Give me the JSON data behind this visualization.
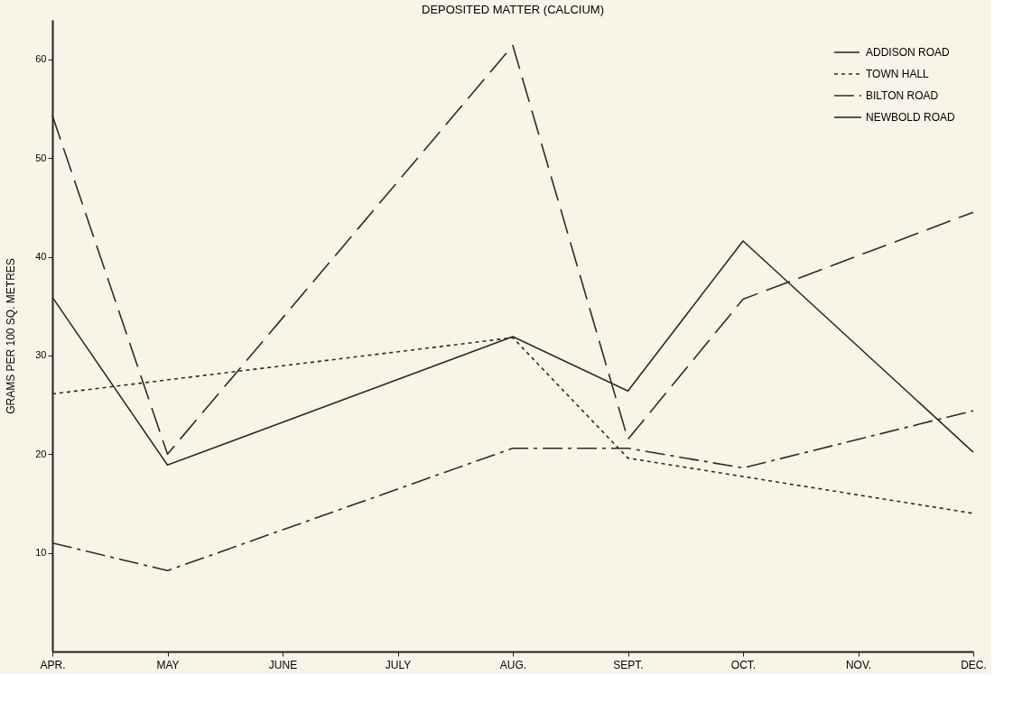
{
  "chart_data": {
    "type": "line",
    "title": "DEPOSITED MATTER (CALCIUM)",
    "ylabel": "GRAMS PER 100 SQ. METRES",
    "categories": [
      "APR.",
      "MAY",
      "JUNE",
      "JULY",
      "AUG.",
      "SEPT.",
      "OCT.",
      "NOV.",
      "DEC."
    ],
    "series": [
      {
        "name": "ADDISON ROAD",
        "color": "#2b2b2b",
        "line_style": "dashed",
        "values": [
          54.3,
          20.0,
          null,
          null,
          61.4,
          21.5,
          35.7,
          null,
          44.5
        ]
      },
      {
        "name": "TOWN HALL",
        "color": "#2b2b2b",
        "line_style": "dotted",
        "values": [
          26.1,
          null,
          null,
          null,
          31.8,
          19.6,
          null,
          null,
          14.0
        ]
      },
      {
        "name": "BILTON ROAD",
        "color": "#2b2b2b",
        "line_style": "dashdot",
        "values": [
          11.0,
          8.2,
          null,
          null,
          20.6,
          20.6,
          18.6,
          null,
          24.4
        ]
      },
      {
        "name": "NEWBOLD ROAD",
        "color": "#2b2b2b",
        "line_style": "solid",
        "values": [
          35.9,
          18.9,
          null,
          null,
          31.9,
          26.4,
          41.6,
          null,
          20.2
        ]
      }
    ],
    "ylim": [
      0,
      64
    ],
    "yticks": [
      10,
      20,
      30,
      40,
      50,
      60
    ],
    "grid": false,
    "legend": "top right",
    "marker": "none"
  }
}
